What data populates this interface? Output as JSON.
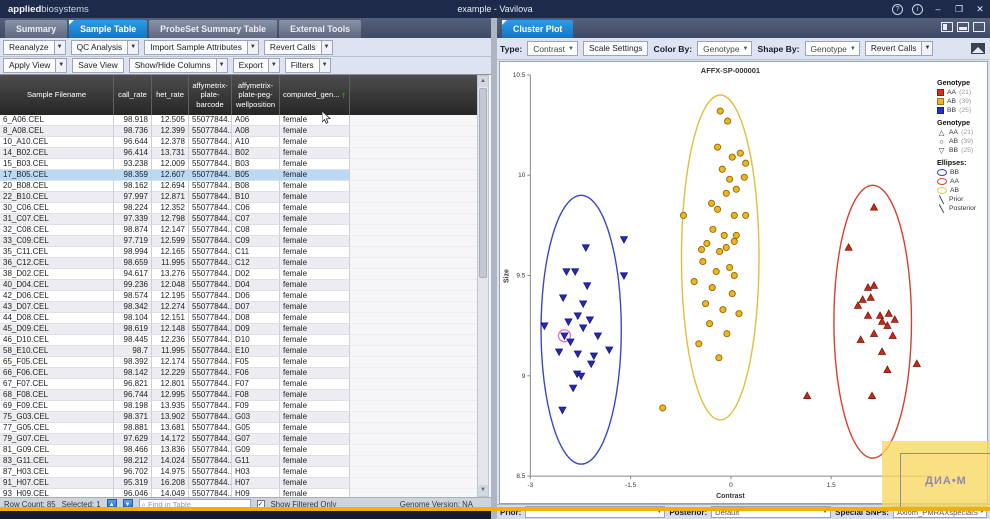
{
  "titlebar": {
    "logo_bold": "applied",
    "logo_light": "biosystems",
    "window_title": "example - Vavilova",
    "controls": {
      "help": "?",
      "info": "i",
      "minimize": "–",
      "maximize": "❐",
      "close": "✕"
    }
  },
  "left_panel": {
    "tabs": [
      {
        "label": "Summary",
        "active": false
      },
      {
        "label": "Sample Table",
        "active": true
      },
      {
        "label": "ProbeSet Summary Table",
        "active": false
      },
      {
        "label": "External Tools",
        "active": false
      }
    ],
    "toolbar_row1": [
      {
        "label": "Reanalyze",
        "caret": true
      },
      {
        "label": "QC Analysis",
        "caret": true
      },
      {
        "label": "Import Sample Attributes",
        "caret": true
      },
      {
        "label": "Revert Calls",
        "caret": true
      }
    ],
    "toolbar_row2": [
      {
        "label": "Apply View",
        "caret": true
      },
      {
        "label": "Save View",
        "caret": false
      },
      {
        "label": "Show/Hide Columns",
        "caret": true
      },
      {
        "label": "Export",
        "caret": true
      },
      {
        "label": "Filters",
        "caret": true
      }
    ],
    "table": {
      "columns": [
        {
          "lines": [
            "Sample Filename"
          ],
          "sorted": false
        },
        {
          "lines": [
            "call_rate"
          ],
          "sorted": false
        },
        {
          "lines": [
            "het_rate"
          ],
          "sorted": false
        },
        {
          "lines": [
            "affymetrix-",
            "plate-",
            "barcode"
          ],
          "sorted": false
        },
        {
          "lines": [
            "affymetrix-",
            "plate-peg-",
            "wellposition"
          ],
          "sorted": false
        },
        {
          "lines": [
            "computed_gen..."
          ],
          "sorted": true
        }
      ],
      "selected_row_index": 5,
      "rows": [
        [
          "6_A06.CEL",
          "98.918",
          "12.505",
          "55077844...",
          "A06",
          "female"
        ],
        [
          "8_A08.CEL",
          "98.736",
          "12.399",
          "55077844...",
          "A08",
          "female"
        ],
        [
          "10_A10.CEL",
          "96.644",
          "12.378",
          "55077844...",
          "A10",
          "female"
        ],
        [
          "14_B02.CEL",
          "96.414",
          "13.731",
          "55077844...",
          "B02",
          "female"
        ],
        [
          "15_B03.CEL",
          "93.238",
          "12.009",
          "55077844...",
          "B03",
          "female"
        ],
        [
          "17_B05.CEL",
          "98.359",
          "12.607",
          "55077844...",
          "B05",
          "female"
        ],
        [
          "20_B08.CEL",
          "98.162",
          "12.694",
          "55077844...",
          "B08",
          "female"
        ],
        [
          "22_B10.CEL",
          "97.997",
          "12.871",
          "55077844...",
          "B10",
          "female"
        ],
        [
          "30_C06.CEL",
          "98.224",
          "12.352",
          "55077844...",
          "C06",
          "female"
        ],
        [
          "31_C07.CEL",
          "97.339",
          "12.798",
          "55077844...",
          "C07",
          "female"
        ],
        [
          "32_C08.CEL",
          "98.874",
          "12.147",
          "55077844...",
          "C08",
          "female"
        ],
        [
          "33_C09.CEL",
          "97.719",
          "12.599",
          "55077844...",
          "C09",
          "female"
        ],
        [
          "35_C11.CEL",
          "98.994",
          "12.165",
          "55077844...",
          "C11",
          "female"
        ],
        [
          "36_C12.CEL",
          "98.659",
          "11.995",
          "55077844...",
          "C12",
          "female"
        ],
        [
          "38_D02.CEL",
          "94.617",
          "13.276",
          "55077844...",
          "D02",
          "female"
        ],
        [
          "40_D04.CEL",
          "99.236",
          "12.048",
          "55077844...",
          "D04",
          "female"
        ],
        [
          "42_D06.CEL",
          "98.574",
          "12.195",
          "55077844...",
          "D06",
          "female"
        ],
        [
          "43_D07.CEL",
          "98.342",
          "12.274",
          "55077844...",
          "D07",
          "female"
        ],
        [
          "44_D08.CEL",
          "98.104",
          "12.151",
          "55077844...",
          "D08",
          "female"
        ],
        [
          "45_D09.CEL",
          "98.619",
          "12.148",
          "55077844...",
          "D09",
          "female"
        ],
        [
          "46_D10.CEL",
          "98.445",
          "12.236",
          "55077844...",
          "D10",
          "female"
        ],
        [
          "58_E10.CEL",
          "98.7",
          "11.995",
          "55077844...",
          "E10",
          "female"
        ],
        [
          "65_F05.CEL",
          "98.392",
          "12.174",
          "55077844...",
          "F05",
          "female"
        ],
        [
          "66_F06.CEL",
          "98.142",
          "12.229",
          "55077844...",
          "F06",
          "female"
        ],
        [
          "67_F07.CEL",
          "96.821",
          "12.801",
          "55077844...",
          "F07",
          "female"
        ],
        [
          "68_F08.CEL",
          "96.744",
          "12.995",
          "55077844...",
          "F08",
          "female"
        ],
        [
          "69_F09.CEL",
          "98.198",
          "13.935",
          "55077844...",
          "F09",
          "female"
        ],
        [
          "75_G03.CEL",
          "98.371",
          "13.902",
          "55077844...",
          "G03",
          "female"
        ],
        [
          "77_G05.CEL",
          "98.881",
          "13.681",
          "55077844...",
          "G05",
          "female"
        ],
        [
          "79_G07.CEL",
          "97.629",
          "14.172",
          "55077844...",
          "G07",
          "female"
        ],
        [
          "81_G09.CEL",
          "98.466",
          "13.836",
          "55077844...",
          "G09",
          "female"
        ],
        [
          "83_G11.CEL",
          "98.212",
          "14.024",
          "55077844...",
          "G11",
          "female"
        ],
        [
          "87_H03.CEL",
          "96.702",
          "14.975",
          "55077844...",
          "H03",
          "female"
        ],
        [
          "91_H07.CEL",
          "95.319",
          "16.208",
          "55077844...",
          "H07",
          "female"
        ],
        [
          "93_H09.CEL",
          "96.046",
          "14.049",
          "55077844...",
          "H09",
          "female"
        ]
      ]
    },
    "status_bar": {
      "row_count": "Row Count: 85",
      "selected": "Selected: 1",
      "up_icon": "▲",
      "down_icon": "▼",
      "find_placeholder": "Find in Table",
      "checkbox_checked": "✓",
      "show_filtered": "Show Filtered Only",
      "genome_version": "Genome Version: NA"
    }
  },
  "right_panel": {
    "tab": "Cluster Plot",
    "toolbar": {
      "type_label": "Type:",
      "type_value": "Contrast",
      "scale_settings": "Scale Settings",
      "color_by_label": "Color By:",
      "color_by_value": "Genotype",
      "shape_by_label": "Shape By:",
      "shape_by_value": "Genotype",
      "revert_calls": "Revert Calls"
    },
    "legend": {
      "sections": [
        {
          "title": "Genotype",
          "type": "fill",
          "items": [
            {
              "label": "AA",
              "count": "(21)",
              "color": "#d03018"
            },
            {
              "label": "AB",
              "count": "(39)",
              "color": "#f0b41e"
            },
            {
              "label": "BB",
              "count": "(25)",
              "color": "#2030c8"
            }
          ]
        },
        {
          "title": "Genotype",
          "type": "shape",
          "items": [
            {
              "label": "AA",
              "count": "(21)",
              "glyph": "△"
            },
            {
              "label": "AB",
              "count": "(39)",
              "glyph": "○"
            },
            {
              "label": "BB",
              "count": "(25)",
              "glyph": "▽"
            }
          ]
        },
        {
          "title": "Ellipses:",
          "type": "ellipse",
          "items": [
            {
              "label": "BB",
              "color": "#2a3bd0"
            },
            {
              "label": "AA",
              "color": "#d8402a"
            },
            {
              "label": "AB",
              "color": "#e6c84e"
            },
            {
              "label": "Prior",
              "glyph": "╲"
            },
            {
              "label": "Posterior",
              "glyph": "╲"
            }
          ]
        }
      ]
    },
    "bottom_bar": {
      "prior_label": "Prior:",
      "prior_value": "",
      "posterior_label": "Posterior:",
      "posterior_value": "Default",
      "special_label": "Special SNPs:",
      "special_value": "Axiom_PMRAXspecialS"
    }
  },
  "chart_data": {
    "type": "scatter",
    "title": "AFFX-SP-000001",
    "xlabel": "Contrast",
    "ylabel": "Size",
    "xlim": [
      -3,
      3
    ],
    "ylim": [
      8.5,
      10.5
    ],
    "xticks": [
      -3,
      -1.5,
      0,
      1.5,
      3
    ],
    "yticks": [
      8.5,
      9,
      9.5,
      10,
      10.5
    ],
    "grid": false,
    "legend_position": "right",
    "series": [
      {
        "name": "BB",
        "marker": "triangle-down",
        "color": "#2428bb",
        "outline": "#12156e",
        "points": [
          [
            -2.17,
            9.64
          ],
          [
            -1.6,
            9.68
          ],
          [
            -2.46,
            9.52
          ],
          [
            -2.33,
            9.52
          ],
          [
            -1.6,
            9.5
          ],
          [
            -2.51,
            9.39
          ],
          [
            -2.21,
            9.36
          ],
          [
            -2.29,
            9.3
          ],
          [
            -2.11,
            9.28
          ],
          [
            -2.43,
            9.27
          ],
          [
            -2.21,
            9.24
          ],
          [
            -2.79,
            9.25
          ],
          [
            -2.49,
            9.2
          ],
          [
            -2.4,
            9.17
          ],
          [
            -1.99,
            9.2
          ],
          [
            -2.57,
            9.12
          ],
          [
            -2.29,
            9.11
          ],
          [
            -1.82,
            9.13
          ],
          [
            -2.05,
            9.1
          ],
          [
            -2.09,
            9.06
          ],
          [
            -2.3,
            9.01
          ],
          [
            -2.24,
            9.0
          ],
          [
            -2.36,
            8.94
          ],
          [
            -2.52,
            8.83
          ],
          [
            -2.15,
            9.45
          ]
        ]
      },
      {
        "name": "AB",
        "marker": "circle",
        "color": "#f0b41e",
        "outline": "#8a6a00",
        "points": [
          [
            -0.16,
            10.32
          ],
          [
            -0.05,
            10.27
          ],
          [
            -0.2,
            10.14
          ],
          [
            0.02,
            10.09
          ],
          [
            0.14,
            10.11
          ],
          [
            0.22,
            10.06
          ],
          [
            -0.13,
            10.03
          ],
          [
            -0.02,
            9.98
          ],
          [
            0.2,
            9.99
          ],
          [
            0.08,
            9.93
          ],
          [
            -0.07,
            9.91
          ],
          [
            -0.29,
            9.86
          ],
          [
            -0.2,
            9.83
          ],
          [
            -0.71,
            9.8
          ],
          [
            0.05,
            9.8
          ],
          [
            0.22,
            9.8
          ],
          [
            -0.27,
            9.73
          ],
          [
            -0.1,
            9.7
          ],
          [
            0.08,
            9.7
          ],
          [
            -0.36,
            9.66
          ],
          [
            -0.44,
            9.63
          ],
          [
            -0.07,
            9.64
          ],
          [
            0.05,
            9.67
          ],
          [
            -0.17,
            9.62
          ],
          [
            -0.42,
            9.57
          ],
          [
            -0.02,
            9.54
          ],
          [
            -0.22,
            9.52
          ],
          [
            0.05,
            9.5
          ],
          [
            -0.55,
            9.47
          ],
          [
            -0.28,
            9.44
          ],
          [
            0.02,
            9.41
          ],
          [
            -0.38,
            9.36
          ],
          [
            -0.12,
            9.33
          ],
          [
            0.12,
            9.31
          ],
          [
            -0.32,
            9.26
          ],
          [
            -0.06,
            9.21
          ],
          [
            -0.48,
            9.16
          ],
          [
            -0.18,
            9.09
          ],
          [
            -1.02,
            8.84
          ]
        ]
      },
      {
        "name": "AA",
        "marker": "triangle-up",
        "color": "#c52a18",
        "outline": "#701206",
        "points": [
          [
            2.14,
            9.84
          ],
          [
            1.76,
            9.64
          ],
          [
            2.14,
            9.45
          ],
          [
            1.97,
            9.38
          ],
          [
            2.09,
            9.39
          ],
          [
            1.9,
            9.35
          ],
          [
            2.05,
            9.3
          ],
          [
            2.23,
            9.3
          ],
          [
            2.36,
            9.31
          ],
          [
            2.45,
            9.28
          ],
          [
            2.26,
            9.27
          ],
          [
            2.34,
            9.25
          ],
          [
            2.14,
            9.21
          ],
          [
            1.94,
            9.18
          ],
          [
            2.26,
            9.12
          ],
          [
            2.78,
            9.06
          ],
          [
            2.34,
            9.03
          ],
          [
            1.14,
            8.9
          ],
          [
            2.11,
            8.9
          ],
          [
            2.42,
            9.2
          ],
          [
            2.05,
            9.44
          ]
        ]
      }
    ],
    "ellipses": [
      {
        "name": "BB",
        "color": "#3a46c8",
        "cx": -2.24,
        "cy": 9.23,
        "rx": 0.6,
        "ry": 0.67
      },
      {
        "name": "AB",
        "color": "#e2bd3a",
        "cx": -0.16,
        "cy": 9.59,
        "rx": 0.58,
        "ry": 0.81
      },
      {
        "name": "AA",
        "color": "#d8402a",
        "cx": 2.12,
        "cy": 9.27,
        "rx": 0.58,
        "ry": 0.68
      }
    ],
    "selected_point": {
      "series": "BB",
      "x": -2.49,
      "y": 9.2,
      "highlight_color": "#e86ad0"
    }
  },
  "watermark": {
    "text": "ДИА•М"
  },
  "colors": {
    "titlebar": "#1d2a49",
    "active_tab": "#1e88d2",
    "selected_row": "#b9d9f7",
    "sort_arrow": "#45c41d",
    "progress_line": "#ecb206",
    "watermark_bg": "#f7d860"
  }
}
